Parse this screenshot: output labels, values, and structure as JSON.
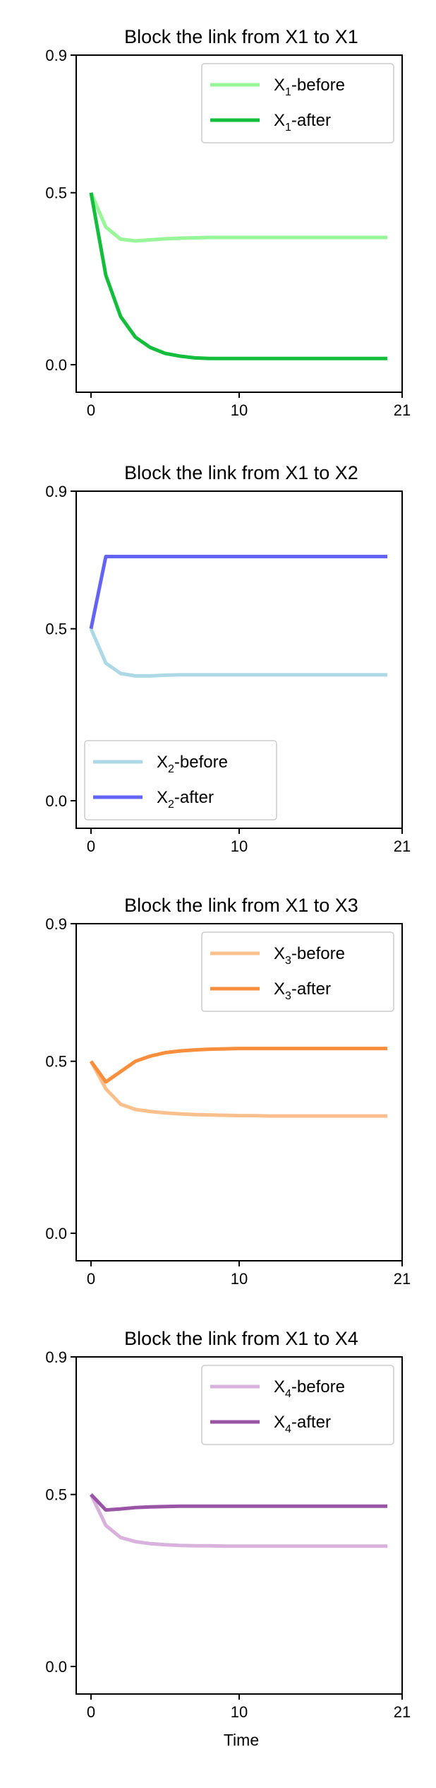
{
  "chart_data": [
    {
      "type": "line",
      "title": "Block the link from X1 to X1",
      "xlabel": "",
      "ylabel": "",
      "xlim": [
        -1,
        21
      ],
      "ylim": [
        -0.08,
        0.9
      ],
      "xticks": [
        0,
        10,
        21
      ],
      "yticks": [
        0.0,
        0.5,
        0.9
      ],
      "ytick_labels": [
        "0.0",
        "0.5",
        "0.9"
      ],
      "legend_position": "upper right",
      "x": [
        0,
        1,
        2,
        3,
        4,
        5,
        6,
        7,
        8,
        9,
        10,
        11,
        12,
        13,
        14,
        15,
        16,
        17,
        18,
        19,
        20
      ],
      "series": [
        {
          "name": "X1-before",
          "base": "X",
          "sub": "1",
          "suffix": "-before",
          "color": "#98f598",
          "values": [
            0.5,
            0.4,
            0.365,
            0.36,
            0.363,
            0.366,
            0.368,
            0.369,
            0.37,
            0.37,
            0.37,
            0.37,
            0.37,
            0.37,
            0.37,
            0.37,
            0.37,
            0.37,
            0.37,
            0.37,
            0.37
          ]
        },
        {
          "name": "X1-after",
          "base": "X",
          "sub": "1",
          "suffix": "-after",
          "color": "#14bd3c",
          "values": [
            0.5,
            0.26,
            0.14,
            0.08,
            0.05,
            0.033,
            0.025,
            0.02,
            0.018,
            0.018,
            0.018,
            0.018,
            0.018,
            0.018,
            0.018,
            0.018,
            0.018,
            0.018,
            0.018,
            0.018,
            0.018
          ]
        }
      ]
    },
    {
      "type": "line",
      "title": "Block the link from X1 to X2",
      "xlabel": "",
      "ylabel": "",
      "xlim": [
        -1,
        21
      ],
      "ylim": [
        -0.08,
        0.9
      ],
      "xticks": [
        0,
        10,
        21
      ],
      "yticks": [
        0.0,
        0.5,
        0.9
      ],
      "ytick_labels": [
        "0.0",
        "0.5",
        "0.9"
      ],
      "legend_position": "lower left",
      "x": [
        0,
        1,
        2,
        3,
        4,
        5,
        6,
        7,
        8,
        9,
        10,
        11,
        12,
        13,
        14,
        15,
        16,
        17,
        18,
        19,
        20
      ],
      "series": [
        {
          "name": "X2-before",
          "base": "X",
          "sub": "2",
          "suffix": "-before",
          "color": "#add8e6",
          "values": [
            0.5,
            0.4,
            0.37,
            0.363,
            0.363,
            0.365,
            0.366,
            0.366,
            0.366,
            0.366,
            0.366,
            0.366,
            0.366,
            0.366,
            0.366,
            0.366,
            0.366,
            0.366,
            0.366,
            0.366,
            0.366
          ]
        },
        {
          "name": "X2-after",
          "base": "X",
          "sub": "2",
          "suffix": "-after",
          "color": "#6464f4",
          "values": [
            0.5,
            0.71,
            0.71,
            0.71,
            0.71,
            0.71,
            0.71,
            0.71,
            0.71,
            0.71,
            0.71,
            0.71,
            0.71,
            0.71,
            0.71,
            0.71,
            0.71,
            0.71,
            0.71,
            0.71,
            0.71
          ]
        }
      ]
    },
    {
      "type": "line",
      "title": "Block the link from X1 to X3",
      "xlabel": "",
      "ylabel": "",
      "xlim": [
        -1,
        21
      ],
      "ylim": [
        -0.08,
        0.9
      ],
      "xticks": [
        0,
        10,
        21
      ],
      "yticks": [
        0.0,
        0.5,
        0.9
      ],
      "ytick_labels": [
        "0.0",
        "0.5",
        "0.9"
      ],
      "legend_position": "upper right",
      "x": [
        0,
        1,
        2,
        3,
        4,
        5,
        6,
        7,
        8,
        9,
        10,
        11,
        12,
        13,
        14,
        15,
        16,
        17,
        18,
        19,
        20
      ],
      "series": [
        {
          "name": "X3-before",
          "base": "X",
          "sub": "3",
          "suffix": "-before",
          "color": "#f9c08e",
          "values": [
            0.5,
            0.42,
            0.375,
            0.36,
            0.354,
            0.35,
            0.347,
            0.345,
            0.344,
            0.343,
            0.342,
            0.342,
            0.341,
            0.341,
            0.341,
            0.341,
            0.341,
            0.341,
            0.341,
            0.341,
            0.341
          ]
        },
        {
          "name": "X3-after",
          "base": "X",
          "sub": "3",
          "suffix": "-after",
          "color": "#f98e3c",
          "values": [
            0.5,
            0.44,
            0.47,
            0.5,
            0.515,
            0.525,
            0.53,
            0.533,
            0.535,
            0.536,
            0.537,
            0.537,
            0.537,
            0.537,
            0.537,
            0.537,
            0.537,
            0.537,
            0.537,
            0.537,
            0.537
          ]
        }
      ]
    },
    {
      "type": "line",
      "title": "Block the link from X1 to X4",
      "xlabel": "Time",
      "ylabel": "",
      "xlim": [
        -1,
        21
      ],
      "ylim": [
        -0.08,
        0.9
      ],
      "xticks": [
        0,
        10,
        21
      ],
      "yticks": [
        0.0,
        0.5,
        0.9
      ],
      "ytick_labels": [
        "0.0",
        "0.5",
        "0.9"
      ],
      "legend_position": "upper right",
      "x": [
        0,
        1,
        2,
        3,
        4,
        5,
        6,
        7,
        8,
        9,
        10,
        11,
        12,
        13,
        14,
        15,
        16,
        17,
        18,
        19,
        20
      ],
      "series": [
        {
          "name": "X4-before",
          "base": "X",
          "sub": "4",
          "suffix": "-before",
          "color": "#d8b2dc",
          "values": [
            0.5,
            0.41,
            0.375,
            0.363,
            0.357,
            0.354,
            0.352,
            0.351,
            0.351,
            0.35,
            0.35,
            0.35,
            0.35,
            0.35,
            0.35,
            0.35,
            0.35,
            0.35,
            0.35,
            0.35,
            0.35
          ]
        },
        {
          "name": "X4-after",
          "base": "X",
          "sub": "4",
          "suffix": "-after",
          "color": "#9a54a6",
          "values": [
            0.5,
            0.455,
            0.458,
            0.462,
            0.464,
            0.465,
            0.466,
            0.466,
            0.466,
            0.466,
            0.466,
            0.466,
            0.466,
            0.466,
            0.466,
            0.466,
            0.466,
            0.466,
            0.466,
            0.466,
            0.466
          ]
        }
      ]
    }
  ]
}
